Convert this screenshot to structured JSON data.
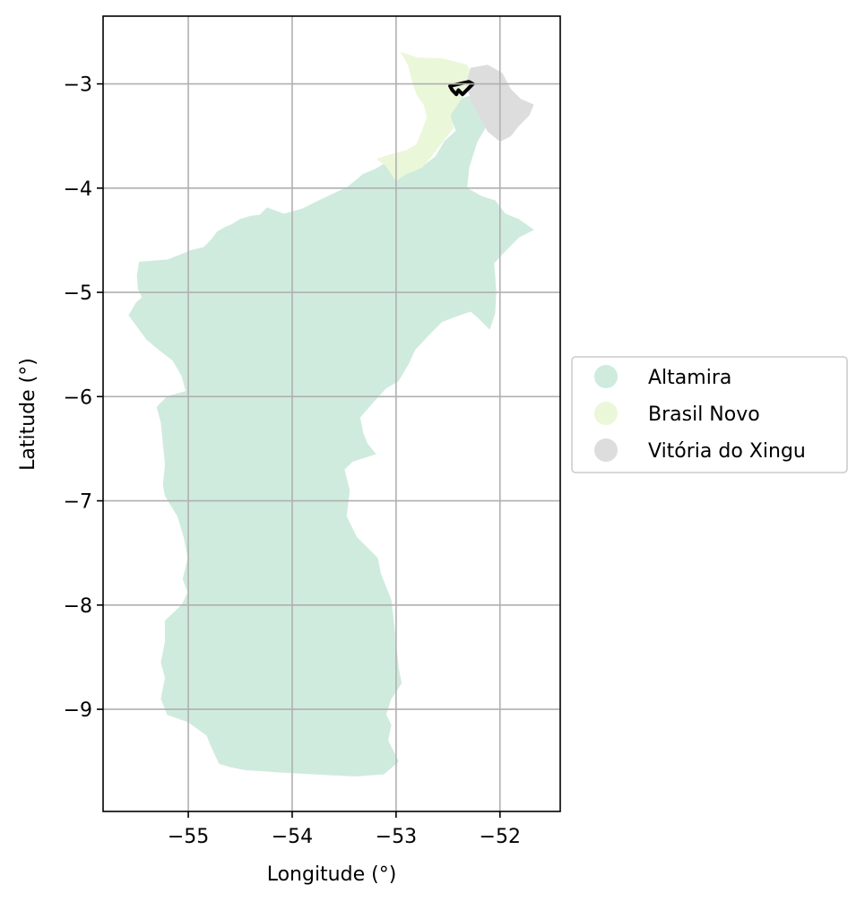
{
  "chart_data": {
    "type": "map",
    "xlabel": "Longitude (°)",
    "ylabel": "Latitude (°)",
    "xlim": [
      -55.82,
      -51.42
    ],
    "ylim": [
      -9.98,
      -2.35
    ],
    "xticks": [
      -55,
      -54,
      -53,
      -52
    ],
    "yticks": [
      -3,
      -4,
      -5,
      -6,
      -7,
      -8,
      -9
    ],
    "grid": true,
    "legend_position": "center-right",
    "regions": [
      {
        "name": "Altamira",
        "color": "#cfebdd",
        "boundary": [
          [
            -55.57,
            -5.22
          ],
          [
            -55.5,
            -5.1
          ],
          [
            -55.44,
            -5.05
          ],
          [
            -55.48,
            -4.97
          ],
          [
            -55.49,
            -4.84
          ],
          [
            -55.47,
            -4.71
          ],
          [
            -55.35,
            -4.7
          ],
          [
            -55.2,
            -4.69
          ],
          [
            -55.05,
            -4.63
          ],
          [
            -54.98,
            -4.6
          ],
          [
            -54.85,
            -4.57
          ],
          [
            -54.78,
            -4.5
          ],
          [
            -54.72,
            -4.42
          ],
          [
            -54.65,
            -4.38
          ],
          [
            -54.58,
            -4.35
          ],
          [
            -54.5,
            -4.3
          ],
          [
            -54.4,
            -4.27
          ],
          [
            -54.31,
            -4.26
          ],
          [
            -54.24,
            -4.19
          ],
          [
            -54.08,
            -4.25
          ],
          [
            -53.9,
            -4.2
          ],
          [
            -53.76,
            -4.13
          ],
          [
            -53.57,
            -4.04
          ],
          [
            -53.48,
            -4.0
          ],
          [
            -53.4,
            -3.94
          ],
          [
            -53.32,
            -3.87
          ],
          [
            -53.2,
            -3.82
          ],
          [
            -53.1,
            -3.76
          ],
          [
            -53.0,
            -3.92
          ],
          [
            -52.92,
            -3.85
          ],
          [
            -52.75,
            -3.8
          ],
          [
            -52.62,
            -3.7
          ],
          [
            -52.53,
            -3.55
          ],
          [
            -52.42,
            -3.45
          ],
          [
            -52.48,
            -3.3
          ],
          [
            -52.4,
            -3.15
          ],
          [
            -52.3,
            -3.12
          ],
          [
            -52.18,
            -3.2
          ],
          [
            -52.1,
            -3.35
          ],
          [
            -52.22,
            -3.55
          ],
          [
            -52.3,
            -3.8
          ],
          [
            -52.32,
            -4.0
          ],
          [
            -52.18,
            -4.08
          ],
          [
            -52.05,
            -4.12
          ],
          [
            -51.95,
            -4.25
          ],
          [
            -51.82,
            -4.3
          ],
          [
            -51.68,
            -4.4
          ],
          [
            -51.82,
            -4.47
          ],
          [
            -51.95,
            -4.6
          ],
          [
            -52.06,
            -4.72
          ],
          [
            -52.05,
            -4.85
          ],
          [
            -52.04,
            -5.0
          ],
          [
            -52.05,
            -5.2
          ],
          [
            -52.1,
            -5.35
          ],
          [
            -52.2,
            -5.25
          ],
          [
            -52.28,
            -5.18
          ],
          [
            -52.4,
            -5.22
          ],
          [
            -52.56,
            -5.28
          ],
          [
            -52.68,
            -5.4
          ],
          [
            -52.82,
            -5.55
          ],
          [
            -52.88,
            -5.68
          ],
          [
            -52.98,
            -5.85
          ],
          [
            -53.1,
            -5.92
          ],
          [
            -53.22,
            -6.05
          ],
          [
            -53.35,
            -6.2
          ],
          [
            -53.32,
            -6.35
          ],
          [
            -53.28,
            -6.45
          ],
          [
            -53.2,
            -6.55
          ],
          [
            -53.42,
            -6.62
          ],
          [
            -53.5,
            -6.7
          ],
          [
            -53.45,
            -6.9
          ],
          [
            -53.48,
            -7.15
          ],
          [
            -53.38,
            -7.35
          ],
          [
            -53.28,
            -7.45
          ],
          [
            -53.18,
            -7.55
          ],
          [
            -53.15,
            -7.7
          ],
          [
            -53.05,
            -7.95
          ],
          [
            -53.02,
            -8.2
          ],
          [
            -53.0,
            -8.4
          ],
          [
            -52.98,
            -8.6
          ],
          [
            -52.95,
            -8.75
          ],
          [
            -53.05,
            -8.9
          ],
          [
            -53.1,
            -9.05
          ],
          [
            -53.05,
            -9.15
          ],
          [
            -53.08,
            -9.3
          ],
          [
            -52.98,
            -9.5
          ],
          [
            -53.12,
            -9.62
          ],
          [
            -53.4,
            -9.64
          ],
          [
            -53.8,
            -9.62
          ],
          [
            -54.15,
            -9.6
          ],
          [
            -54.45,
            -9.58
          ],
          [
            -54.6,
            -9.55
          ],
          [
            -54.7,
            -9.52
          ],
          [
            -54.78,
            -9.35
          ],
          [
            -54.82,
            -9.25
          ],
          [
            -55.0,
            -9.12
          ],
          [
            -55.2,
            -9.05
          ],
          [
            -55.26,
            -8.9
          ],
          [
            -55.22,
            -8.7
          ],
          [
            -55.26,
            -8.55
          ],
          [
            -55.22,
            -8.35
          ],
          [
            -55.22,
            -8.15
          ],
          [
            -55.06,
            -8.0
          ],
          [
            -55.0,
            -7.88
          ],
          [
            -55.05,
            -7.75
          ],
          [
            -55.0,
            -7.55
          ],
          [
            -55.04,
            -7.35
          ],
          [
            -55.1,
            -7.15
          ],
          [
            -55.22,
            -6.95
          ],
          [
            -55.24,
            -6.85
          ],
          [
            -55.22,
            -6.65
          ],
          [
            -55.24,
            -6.45
          ],
          [
            -55.26,
            -6.25
          ],
          [
            -55.3,
            -6.1
          ],
          [
            -55.2,
            -6.0
          ],
          [
            -55.02,
            -5.95
          ],
          [
            -55.06,
            -5.8
          ],
          [
            -55.15,
            -5.65
          ],
          [
            -55.28,
            -5.55
          ],
          [
            -55.4,
            -5.45
          ]
        ]
      },
      {
        "name": "Brasil Novo",
        "color": "#ebf7d9",
        "boundary": [
          [
            -52.95,
            -2.7
          ],
          [
            -52.8,
            -2.75
          ],
          [
            -52.55,
            -2.76
          ],
          [
            -52.32,
            -2.82
          ],
          [
            -52.28,
            -2.9
          ],
          [
            -52.32,
            -3.05
          ],
          [
            -52.4,
            -3.18
          ],
          [
            -52.48,
            -3.3
          ],
          [
            -52.45,
            -3.42
          ],
          [
            -52.55,
            -3.55
          ],
          [
            -52.65,
            -3.68
          ],
          [
            -52.75,
            -3.8
          ],
          [
            -52.92,
            -3.87
          ],
          [
            -53.0,
            -3.93
          ],
          [
            -53.1,
            -3.78
          ],
          [
            -53.18,
            -3.72
          ],
          [
            -53.05,
            -3.68
          ],
          [
            -52.9,
            -3.64
          ],
          [
            -52.8,
            -3.58
          ],
          [
            -52.75,
            -3.46
          ],
          [
            -52.7,
            -3.32
          ],
          [
            -52.73,
            -3.2
          ],
          [
            -52.8,
            -3.1
          ],
          [
            -52.85,
            -2.95
          ],
          [
            -52.88,
            -2.82
          ]
        ]
      },
      {
        "name": "Vitória do Xingu",
        "color": "#dddddd",
        "boundary": [
          [
            -52.28,
            -2.85
          ],
          [
            -52.12,
            -2.82
          ],
          [
            -51.98,
            -2.9
          ],
          [
            -51.9,
            -3.05
          ],
          [
            -51.8,
            -3.15
          ],
          [
            -51.68,
            -3.2
          ],
          [
            -51.72,
            -3.3
          ],
          [
            -51.82,
            -3.4
          ],
          [
            -51.9,
            -3.5
          ],
          [
            -52.0,
            -3.55
          ],
          [
            -52.12,
            -3.45
          ],
          [
            -52.2,
            -3.3
          ],
          [
            -52.28,
            -3.15
          ],
          [
            -52.32,
            -3.0
          ]
        ]
      }
    ],
    "highlight_outline": {
      "color": "#000000",
      "boundary": [
        [
          -52.48,
          -3.02
        ],
        [
          -52.3,
          -2.98
        ],
        [
          -52.26,
          -3.0
        ],
        [
          -52.36,
          -3.1
        ],
        [
          -52.4,
          -3.06
        ],
        [
          -52.42,
          -3.1
        ],
        [
          -52.46,
          -3.06
        ]
      ]
    }
  },
  "legend": {
    "items": [
      {
        "label": "Altamira",
        "color": "#cfebdd"
      },
      {
        "label": "Brasil Novo",
        "color": "#ebf7d9"
      },
      {
        "label": "Vitória do Xingu",
        "color": "#dddddd"
      }
    ]
  }
}
